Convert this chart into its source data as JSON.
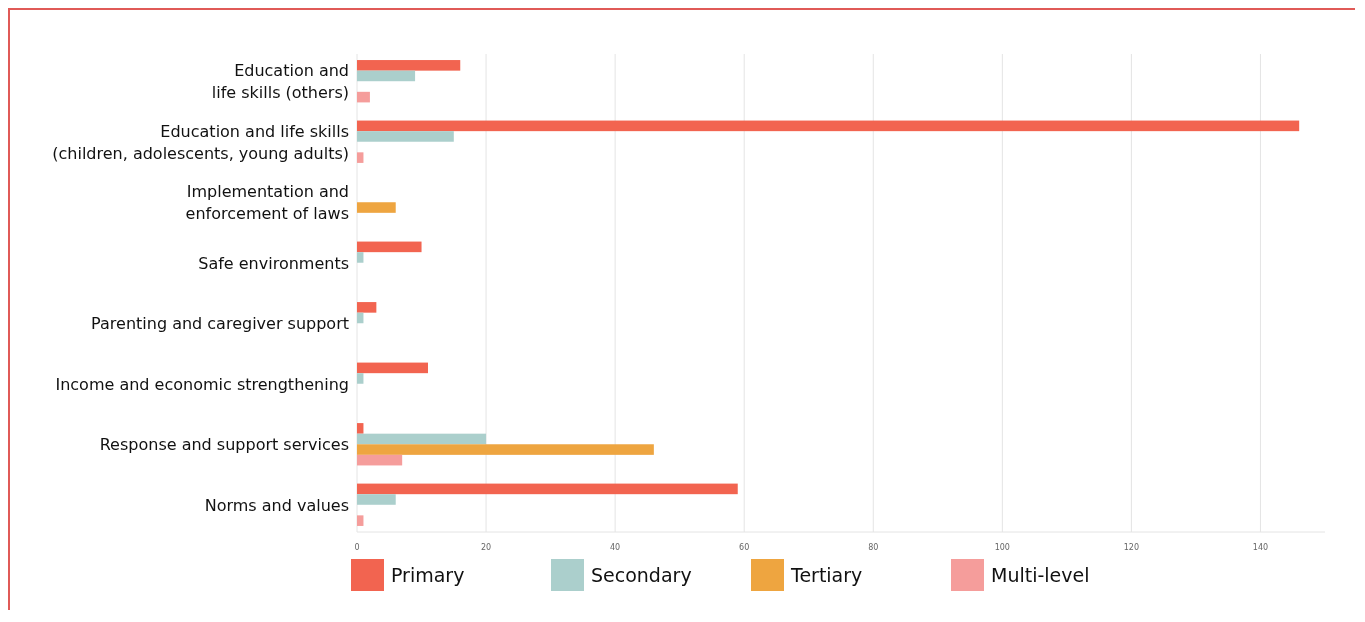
{
  "chart_data": {
    "type": "bar",
    "orientation": "horizontal",
    "categories": [
      "Education and\nlife skills (others)",
      "Education and life skills\n(children, adolescents, young adults)",
      "Implementation and\nenforcement of laws",
      "Safe environments",
      "Parenting and caregiver support",
      "Income and economic strengthening",
      "Response and support services",
      "Norms and values"
    ],
    "series": [
      {
        "name": "Primary",
        "color": "#f26450",
        "values": [
          16,
          146,
          null,
          10,
          3,
          11,
          1,
          59
        ]
      },
      {
        "name": "Secondary",
        "color": "#abcfcc",
        "values": [
          9,
          15,
          null,
          1,
          1,
          1,
          20,
          6
        ]
      },
      {
        "name": "Tertiary",
        "color": "#eea540",
        "values": [
          null,
          null,
          6,
          null,
          null,
          null,
          46,
          null
        ]
      },
      {
        "name": "Multi-level",
        "color": "#f59d9b",
        "values": [
          2,
          1,
          null,
          null,
          null,
          null,
          7,
          1
        ]
      }
    ],
    "xlim": [
      0,
      150
    ],
    "xticks": [
      0,
      20,
      40,
      60,
      80,
      100,
      120,
      140
    ],
    "grid": "x",
    "legend": "bottom"
  }
}
